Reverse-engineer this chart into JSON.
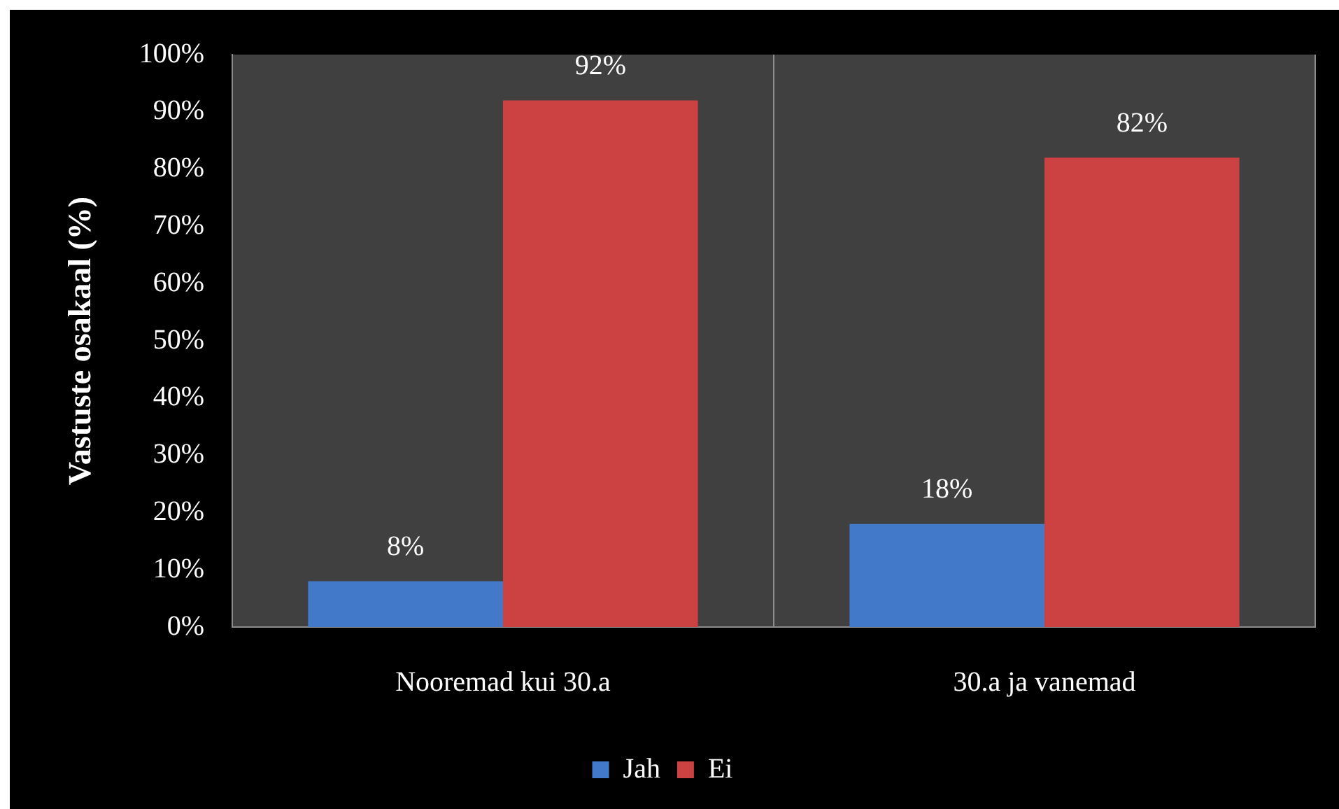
{
  "chart_data": {
    "type": "bar",
    "ylabel": "Vastuste osakaal (%)",
    "categories": [
      "Nooremad kui 30.a",
      "30.a ja vanemad"
    ],
    "series": [
      {
        "name": "Jah",
        "color": "#4279c9",
        "values": [
          8,
          18
        ],
        "value_labels": [
          "8%",
          "18%"
        ]
      },
      {
        "name": "Ei",
        "color": "#cc4141",
        "values": [
          92,
          82
        ],
        "value_labels": [
          "92%",
          "82%"
        ]
      }
    ],
    "ylim": [
      0,
      100
    ],
    "yticks": [
      {
        "value": 0,
        "label": "0%"
      },
      {
        "value": 10,
        "label": "10%"
      },
      {
        "value": 20,
        "label": "20%"
      },
      {
        "value": 30,
        "label": "30%"
      },
      {
        "value": 40,
        "label": "40%"
      },
      {
        "value": 50,
        "label": "50%"
      },
      {
        "value": 60,
        "label": "60%"
      },
      {
        "value": 70,
        "label": "70%"
      },
      {
        "value": 80,
        "label": "80%"
      },
      {
        "value": 90,
        "label": "90%"
      },
      {
        "value": 100,
        "label": "100%"
      }
    ],
    "grid": "x",
    "legend": "bottom"
  }
}
